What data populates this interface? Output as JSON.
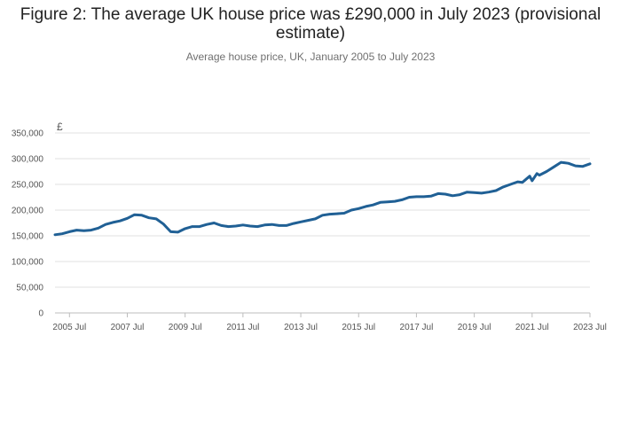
{
  "chart_data": {
    "type": "line",
    "title": "Figure 2: The average UK house price was £290,000 in July 2023 (provisional estimate)",
    "subtitle": "Average house price, UK, January 2005 to July 2023",
    "y_unit": "£",
    "ylim": [
      0,
      350000
    ],
    "y_ticks": [
      0,
      50000,
      100000,
      150000,
      200000,
      250000,
      300000,
      350000
    ],
    "y_tick_labels": [
      "0",
      "50,000",
      "100,000",
      "150,000",
      "200,000",
      "250,000",
      "300,000",
      "350,000"
    ],
    "x_ticks": [
      "2005-07",
      "2007-07",
      "2009-07",
      "2011-07",
      "2013-07",
      "2015-07",
      "2017-07",
      "2019-07",
      "2021-07",
      "2023-07"
    ],
    "x_tick_labels": [
      "2005 Jul",
      "2007 Jul",
      "2009 Jul",
      "2011 Jul",
      "2013 Jul",
      "2015 Jul",
      "2017 Jul",
      "2019 Jul",
      "2021 Jul",
      "2023 Jul"
    ],
    "xlim": [
      "2005-01",
      "2023-07"
    ],
    "grid": true,
    "line_color": "#206095",
    "series": [
      {
        "x": [
          "2005-01",
          "2005-04",
          "2005-07",
          "2005-10",
          "2006-01",
          "2006-04",
          "2006-07",
          "2006-10",
          "2007-01",
          "2007-04",
          "2007-07",
          "2007-10",
          "2008-01",
          "2008-04",
          "2008-07",
          "2008-10",
          "2009-01",
          "2009-04",
          "2009-07",
          "2009-10",
          "2010-01",
          "2010-04",
          "2010-07",
          "2010-10",
          "2011-01",
          "2011-04",
          "2011-07",
          "2011-10",
          "2012-01",
          "2012-04",
          "2012-07",
          "2012-10",
          "2013-01",
          "2013-04",
          "2013-07",
          "2013-10",
          "2014-01",
          "2014-04",
          "2014-07",
          "2014-10",
          "2015-01",
          "2015-04",
          "2015-07",
          "2015-10",
          "2016-01",
          "2016-04",
          "2016-07",
          "2016-10",
          "2017-01",
          "2017-04",
          "2017-07",
          "2017-10",
          "2018-01",
          "2018-04",
          "2018-07",
          "2018-10",
          "2019-01",
          "2019-04",
          "2019-07",
          "2019-10",
          "2020-01",
          "2020-04",
          "2020-07",
          "2020-10",
          "2021-01",
          "2021-03",
          "2021-06",
          "2021-07",
          "2021-09",
          "2021-10",
          "2022-01",
          "2022-04",
          "2022-07",
          "2022-10",
          "2023-01",
          "2023-04",
          "2023-07"
        ],
        "values": [
          152000,
          154000,
          158000,
          161000,
          160000,
          161000,
          165000,
          172000,
          176000,
          179000,
          184000,
          191000,
          190000,
          185000,
          183000,
          173000,
          158000,
          157000,
          164000,
          168000,
          168000,
          172000,
          175000,
          170000,
          168000,
          169000,
          171000,
          169000,
          168000,
          171000,
          172000,
          170000,
          170000,
          174000,
          177000,
          180000,
          183000,
          190000,
          192000,
          193000,
          194000,
          200000,
          203000,
          207000,
          210000,
          215000,
          216000,
          217000,
          220000,
          225000,
          226000,
          226000,
          227000,
          232000,
          231000,
          228000,
          230000,
          235000,
          234000,
          233000,
          235000,
          238000,
          245000,
          250000,
          255000,
          254000,
          266000,
          257000,
          271000,
          268000,
          275000,
          284000,
          293000,
          291000,
          286000,
          285000,
          290000
        ]
      }
    ]
  }
}
